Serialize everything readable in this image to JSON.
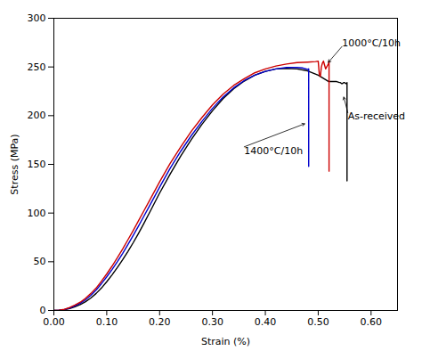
{
  "chart_data": {
    "type": "line",
    "xlabel": "Strain (%)",
    "ylabel": "Stress (MPa)",
    "xlim": [
      0.0,
      0.65
    ],
    "ylim": [
      0,
      300
    ],
    "xticks": [
      {
        "value": 0.0,
        "label": "0.00"
      },
      {
        "value": 0.1,
        "label": "0.10"
      },
      {
        "value": 0.2,
        "label": "0.20"
      },
      {
        "value": 0.3,
        "label": "0.30"
      },
      {
        "value": 0.4,
        "label": "0.40"
      },
      {
        "value": 0.5,
        "label": "0.50"
      },
      {
        "value": 0.6,
        "label": "0.60"
      }
    ],
    "yticks": [
      0,
      50,
      100,
      150,
      200,
      250,
      300
    ],
    "series": [
      {
        "color": "#000000",
        "x": [
          0.0,
          0.005,
          0.01,
          0.02,
          0.03,
          0.04,
          0.05,
          0.06,
          0.07,
          0.08,
          0.09,
          0.1,
          0.11,
          0.12,
          0.13,
          0.14,
          0.15,
          0.16,
          0.17,
          0.18,
          0.19,
          0.2,
          0.22,
          0.24,
          0.26,
          0.28,
          0.3,
          0.32,
          0.34,
          0.36,
          0.38,
          0.4,
          0.42,
          0.44,
          0.46,
          0.48,
          0.5,
          0.52,
          0.53,
          0.535,
          0.54,
          0.542,
          0.544,
          0.546,
          0.548,
          0.55,
          0.552,
          0.554,
          0.5545,
          0.5545
        ],
        "values": [
          0.0,
          0.08,
          0.2,
          0.8,
          2.0,
          3.8,
          6.0,
          9.0,
          12.8,
          17.5,
          23.0,
          29.5,
          36.5,
          44.0,
          52.0,
          60.5,
          69.5,
          79.0,
          89.0,
          99.5,
          110.0,
          120.5,
          140.0,
          158.5,
          175.5,
          191.0,
          205.0,
          217.5,
          227.5,
          235.5,
          241.5,
          245.5,
          248.0,
          248.5,
          248.0,
          246.0,
          241.5,
          235.0,
          235.0,
          235.0,
          234.0,
          234.0,
          233.0,
          233.0,
          234.0,
          234.0,
          233.0,
          233.0,
          234.0,
          133.0
        ]
      },
      {
        "color": "#0000cc",
        "x": [
          0.0,
          0.005,
          0.01,
          0.02,
          0.03,
          0.04,
          0.05,
          0.06,
          0.07,
          0.08,
          0.09,
          0.1,
          0.11,
          0.12,
          0.13,
          0.14,
          0.15,
          0.16,
          0.17,
          0.18,
          0.19,
          0.2,
          0.22,
          0.24,
          0.26,
          0.28,
          0.3,
          0.32,
          0.34,
          0.36,
          0.38,
          0.4,
          0.42,
          0.44,
          0.46,
          0.47,
          0.48,
          0.482,
          0.482
        ],
        "values": [
          0.0,
          0.1,
          0.3,
          1.0,
          2.5,
          4.8,
          7.5,
          11.0,
          15.5,
          21.0,
          27.5,
          34.5,
          42.0,
          50.0,
          58.5,
          67.5,
          77.0,
          86.5,
          96.5,
          106.5,
          116.5,
          126.5,
          146.0,
          163.5,
          179.5,
          194.0,
          207.5,
          219.0,
          228.5,
          236.0,
          241.5,
          245.5,
          248.0,
          249.5,
          249.5,
          249.0,
          247.5,
          248.0,
          148.0
        ]
      },
      {
        "color": "#cc0000",
        "x": [
          0.0,
          0.005,
          0.01,
          0.02,
          0.03,
          0.04,
          0.05,
          0.06,
          0.07,
          0.08,
          0.09,
          0.1,
          0.11,
          0.12,
          0.13,
          0.14,
          0.15,
          0.16,
          0.17,
          0.18,
          0.19,
          0.2,
          0.22,
          0.24,
          0.26,
          0.28,
          0.3,
          0.32,
          0.34,
          0.36,
          0.38,
          0.4,
          0.42,
          0.44,
          0.46,
          0.48,
          0.495,
          0.5,
          0.502,
          0.504,
          0.506,
          0.508,
          0.51,
          0.512,
          0.514,
          0.516,
          0.518,
          0.52,
          0.5205,
          0.5205
        ],
        "values": [
          0.0,
          0.1,
          0.3,
          1.2,
          3.0,
          5.5,
          8.5,
          12.5,
          17.5,
          23.0,
          30.0,
          37.5,
          45.5,
          54.0,
          63.0,
          72.5,
          82.0,
          92.0,
          102.0,
          112.0,
          122.0,
          132.0,
          151.0,
          168.0,
          184.0,
          198.0,
          211.0,
          222.0,
          231.0,
          238.0,
          244.0,
          248.0,
          251.0,
          253.0,
          254.5,
          255.0,
          255.5,
          256.0,
          243.0,
          240.0,
          250.0,
          254.0,
          256.0,
          252.0,
          248.0,
          250.0,
          252.0,
          254.0,
          256.0,
          143.0
        ]
      }
    ],
    "annotations": [
      {
        "text": "1000°C/10h",
        "xy": [
          0.518,
          254.0
        ],
        "xytext": [
          0.545,
          271.0
        ]
      },
      {
        "text": "1400°C/10h",
        "xy": [
          0.476,
          192.0
        ],
        "xytext": [
          0.36,
          168.0
        ]
      },
      {
        "text": "As-received",
        "xy": [
          0.548,
          220.0
        ],
        "xytext": [
          0.556,
          203.0
        ]
      }
    ]
  }
}
